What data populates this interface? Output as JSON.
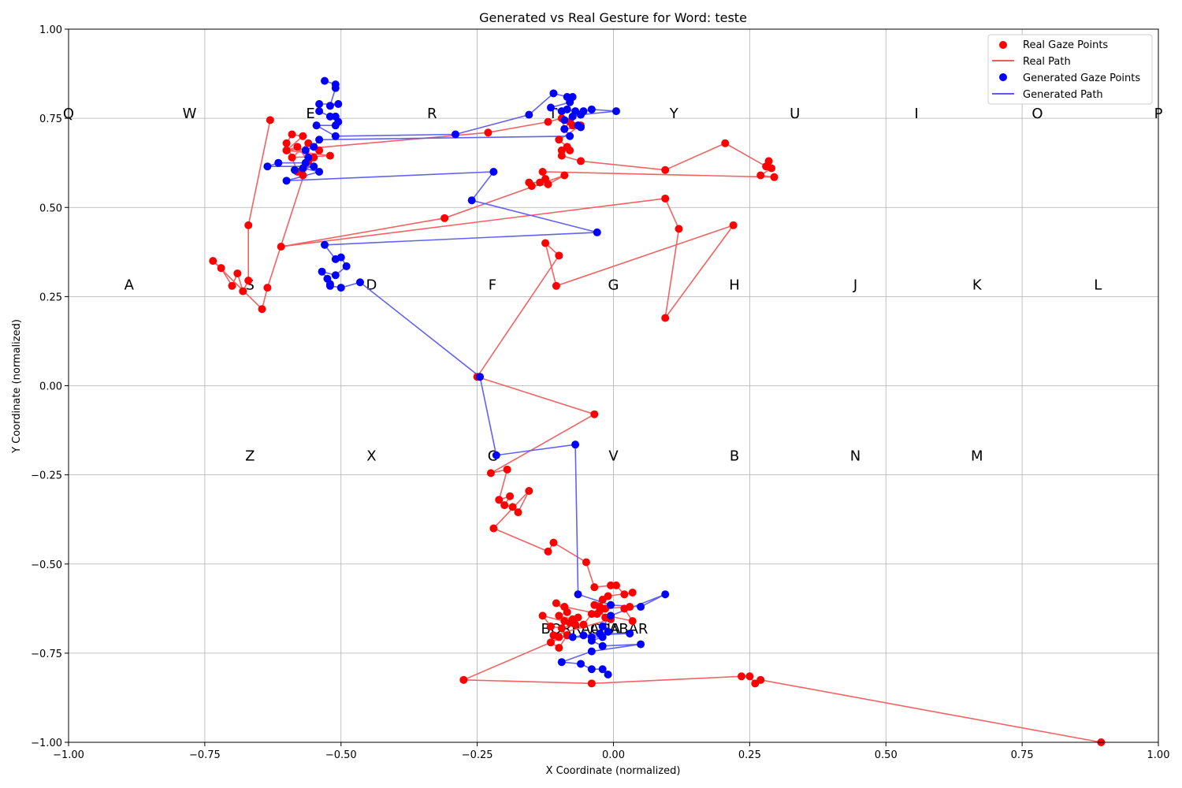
{
  "chart_data": {
    "type": "scatter",
    "title": "Generated vs Real Gesture for Word: teste",
    "xlabel": "X Coordinate (normalized)",
    "ylabel": "Y Coordinate (normalized)",
    "xlim": [
      -1.0,
      1.0
    ],
    "ylim": [
      -1.0,
      1.0
    ],
    "x_ticks": [
      "−1.00",
      "−0.75",
      "−0.50",
      "−0.25",
      "0.00",
      "0.25",
      "0.50",
      "0.75",
      "1.00"
    ],
    "y_ticks": [
      "−1.00",
      "−0.75",
      "−0.50",
      "−0.25",
      "0.00",
      "0.25",
      "0.50",
      "0.75",
      "1.00"
    ],
    "x_tick_values": [
      -1.0,
      -0.75,
      -0.5,
      -0.25,
      0.0,
      0.25,
      0.5,
      0.75,
      1.0
    ],
    "y_tick_values": [
      -1.0,
      -0.75,
      -0.5,
      -0.25,
      0.0,
      0.25,
      0.5,
      0.75,
      1.0
    ],
    "grid": true,
    "legend_position": "top-right",
    "keys": [
      {
        "label": "Q",
        "x": -1.0,
        "y": 0.75
      },
      {
        "label": "W",
        "x": -0.778,
        "y": 0.75
      },
      {
        "label": "E",
        "x": -0.556,
        "y": 0.75
      },
      {
        "label": "R",
        "x": -0.333,
        "y": 0.75
      },
      {
        "label": "T",
        "x": -0.111,
        "y": 0.75
      },
      {
        "label": "Y",
        "x": 0.111,
        "y": 0.75
      },
      {
        "label": "U",
        "x": 0.333,
        "y": 0.75
      },
      {
        "label": "I",
        "x": 0.556,
        "y": 0.75
      },
      {
        "label": "O",
        "x": 0.778,
        "y": 0.75
      },
      {
        "label": "P",
        "x": 1.0,
        "y": 0.75
      },
      {
        "label": "A",
        "x": -0.889,
        "y": 0.27
      },
      {
        "label": "S",
        "x": -0.667,
        "y": 0.27
      },
      {
        "label": "D",
        "x": -0.444,
        "y": 0.27
      },
      {
        "label": "F",
        "x": -0.222,
        "y": 0.27
      },
      {
        "label": "G",
        "x": 0.0,
        "y": 0.27
      },
      {
        "label": "H",
        "x": 0.222,
        "y": 0.27
      },
      {
        "label": "J",
        "x": 0.444,
        "y": 0.27
      },
      {
        "label": "K",
        "x": 0.667,
        "y": 0.27
      },
      {
        "label": "L",
        "x": 0.889,
        "y": 0.27
      },
      {
        "label": "Z",
        "x": -0.667,
        "y": -0.21
      },
      {
        "label": "X",
        "x": -0.444,
        "y": -0.21
      },
      {
        "label": "C",
        "x": -0.222,
        "y": -0.21
      },
      {
        "label": "V",
        "x": 0.0,
        "y": -0.21
      },
      {
        "label": "B",
        "x": 0.222,
        "y": -0.21
      },
      {
        "label": "N",
        "x": 0.444,
        "y": -0.21
      },
      {
        "label": "M",
        "x": 0.667,
        "y": -0.21
      },
      {
        "label": "BORRACHA",
        "x": -0.06,
        "y": -0.695
      },
      {
        "label": "ACABAR",
        "x": 0.01,
        "y": -0.695
      }
    ],
    "series": [
      {
        "name": "Real Gaze Points",
        "path_name": "Real Path",
        "color": "#ff0000",
        "line_color": "#f05b5b",
        "points": [
          [
            -0.63,
            0.745
          ],
          [
            -0.67,
            0.45
          ],
          [
            -0.67,
            0.295
          ],
          [
            -0.68,
            0.265
          ],
          [
            -0.69,
            0.315
          ],
          [
            -0.7,
            0.28
          ],
          [
            -0.72,
            0.33
          ],
          [
            -0.735,
            0.35
          ],
          [
            -0.645,
            0.215
          ],
          [
            -0.635,
            0.275
          ],
          [
            -0.56,
            0.63
          ],
          [
            -0.58,
            0.67
          ],
          [
            -0.6,
            0.66
          ],
          [
            -0.57,
            0.7
          ],
          [
            -0.59,
            0.705
          ],
          [
            -0.6,
            0.68
          ],
          [
            -0.58,
            0.6
          ],
          [
            -0.57,
            0.59
          ],
          [
            -0.55,
            0.64
          ],
          [
            -0.54,
            0.66
          ],
          [
            -0.56,
            0.68
          ],
          [
            -0.59,
            0.64
          ],
          [
            -0.52,
            0.645
          ],
          [
            -0.6,
            0.66
          ],
          [
            -0.23,
            0.71
          ],
          [
            -0.12,
            0.74
          ],
          [
            -0.095,
            0.75
          ],
          [
            -0.09,
            0.72
          ],
          [
            -0.08,
            0.74
          ],
          [
            -0.075,
            0.73
          ],
          [
            -0.06,
            0.73
          ],
          [
            -0.1,
            0.69
          ],
          [
            -0.085,
            0.67
          ],
          [
            -0.08,
            0.66
          ],
          [
            -0.095,
            0.66
          ],
          [
            -0.095,
            0.645
          ],
          [
            -0.06,
            0.63
          ],
          [
            0.095,
            0.605
          ],
          [
            0.205,
            0.68
          ],
          [
            0.28,
            0.615
          ],
          [
            0.285,
            0.63
          ],
          [
            0.29,
            0.61
          ],
          [
            0.27,
            0.59
          ],
          [
            0.295,
            0.585
          ],
          [
            -0.13,
            0.6
          ],
          [
            -0.125,
            0.58
          ],
          [
            -0.135,
            0.57
          ],
          [
            -0.155,
            0.57
          ],
          [
            -0.15,
            0.56
          ],
          [
            -0.12,
            0.565
          ],
          [
            -0.09,
            0.59
          ],
          [
            -0.31,
            0.47
          ],
          [
            -0.61,
            0.39
          ],
          [
            0.095,
            0.525
          ],
          [
            0.12,
            0.44
          ],
          [
            0.095,
            0.19
          ],
          [
            0.22,
            0.45
          ],
          [
            -0.105,
            0.28
          ],
          [
            -0.125,
            0.4
          ],
          [
            -0.1,
            0.365
          ],
          [
            -0.25,
            0.025
          ],
          [
            -0.035,
            -0.08
          ],
          [
            -0.225,
            -0.245
          ],
          [
            -0.195,
            -0.235
          ],
          [
            -0.21,
            -0.32
          ],
          [
            -0.19,
            -0.31
          ],
          [
            -0.2,
            -0.335
          ],
          [
            -0.185,
            -0.34
          ],
          [
            -0.175,
            -0.355
          ],
          [
            -0.155,
            -0.295
          ],
          [
            -0.22,
            -0.4
          ],
          [
            -0.12,
            -0.465
          ],
          [
            -0.11,
            -0.44
          ],
          [
            -0.05,
            -0.495
          ],
          [
            -0.035,
            -0.565
          ],
          [
            -0.005,
            -0.56
          ],
          [
            0.005,
            -0.56
          ],
          [
            0.02,
            -0.585
          ],
          [
            0.035,
            -0.58
          ],
          [
            -0.01,
            -0.59
          ],
          [
            -0.02,
            -0.6
          ],
          [
            -0.035,
            -0.615
          ],
          [
            -0.025,
            -0.62
          ],
          [
            -0.03,
            -0.64
          ],
          [
            -0.015,
            -0.625
          ],
          [
            0.03,
            -0.62
          ],
          [
            0.02,
            -0.625
          ],
          [
            0.035,
            -0.66
          ],
          [
            -0.09,
            -0.62
          ],
          [
            -0.105,
            -0.61
          ],
          [
            -0.085,
            -0.635
          ],
          [
            -0.1,
            -0.645
          ],
          [
            -0.075,
            -0.655
          ],
          [
            -0.065,
            -0.65
          ],
          [
            -0.09,
            -0.66
          ],
          [
            -0.08,
            -0.665
          ],
          [
            -0.13,
            -0.645
          ],
          [
            -0.115,
            -0.675
          ],
          [
            -0.095,
            -0.68
          ],
          [
            -0.07,
            -0.67
          ],
          [
            -0.055,
            -0.67
          ],
          [
            -0.04,
            -0.64
          ],
          [
            -0.025,
            -0.63
          ],
          [
            -0.015,
            -0.65
          ],
          [
            -0.005,
            -0.655
          ],
          [
            -0.11,
            -0.7
          ],
          [
            -0.1,
            -0.705
          ],
          [
            -0.115,
            -0.72
          ],
          [
            -0.1,
            -0.735
          ],
          [
            -0.085,
            -0.7
          ],
          [
            -0.275,
            -0.825
          ],
          [
            -0.04,
            -0.835
          ],
          [
            0.235,
            -0.815
          ],
          [
            0.25,
            -0.815
          ],
          [
            0.26,
            -0.835
          ],
          [
            0.27,
            -0.825
          ],
          [
            0.895,
            -1.0
          ]
        ]
      },
      {
        "name": "Generated Gaze Points",
        "path_name": "Generated Path",
        "color": "#0000ff",
        "line_color": "#5a5af0",
        "points": [
          [
            -0.53,
            0.855
          ],
          [
            -0.51,
            0.845
          ],
          [
            -0.51,
            0.835
          ],
          [
            -0.52,
            0.785
          ],
          [
            -0.505,
            0.79
          ],
          [
            -0.54,
            0.79
          ],
          [
            -0.54,
            0.77
          ],
          [
            -0.52,
            0.755
          ],
          [
            -0.51,
            0.755
          ],
          [
            -0.505,
            0.74
          ],
          [
            -0.51,
            0.73
          ],
          [
            -0.545,
            0.73
          ],
          [
            -0.51,
            0.7
          ],
          [
            -0.29,
            0.705
          ],
          [
            -0.155,
            0.76
          ],
          [
            -0.11,
            0.82
          ],
          [
            -0.085,
            0.81
          ],
          [
            -0.075,
            0.81
          ],
          [
            -0.08,
            0.795
          ],
          [
            -0.115,
            0.78
          ],
          [
            -0.095,
            0.77
          ],
          [
            -0.085,
            0.775
          ],
          [
            -0.07,
            0.77
          ],
          [
            -0.055,
            0.77
          ],
          [
            -0.04,
            0.775
          ],
          [
            0.005,
            0.77
          ],
          [
            -0.06,
            0.76
          ],
          [
            -0.075,
            0.755
          ],
          [
            -0.09,
            0.745
          ],
          [
            -0.065,
            0.73
          ],
          [
            -0.06,
            0.725
          ],
          [
            -0.09,
            0.72
          ],
          [
            -0.08,
            0.7
          ],
          [
            -0.54,
            0.69
          ],
          [
            -0.55,
            0.67
          ],
          [
            -0.565,
            0.66
          ],
          [
            -0.56,
            0.64
          ],
          [
            -0.565,
            0.625
          ],
          [
            -0.615,
            0.625
          ],
          [
            -0.635,
            0.615
          ],
          [
            -0.55,
            0.615
          ],
          [
            -0.585,
            0.605
          ],
          [
            -0.57,
            0.61
          ],
          [
            -0.54,
            0.6
          ],
          [
            -0.6,
            0.575
          ],
          [
            -0.22,
            0.6
          ],
          [
            -0.26,
            0.52
          ],
          [
            -0.03,
            0.43
          ],
          [
            -0.53,
            0.395
          ],
          [
            -0.51,
            0.355
          ],
          [
            -0.5,
            0.36
          ],
          [
            -0.49,
            0.335
          ],
          [
            -0.51,
            0.31
          ],
          [
            -0.535,
            0.32
          ],
          [
            -0.525,
            0.3
          ],
          [
            -0.52,
            0.285
          ],
          [
            -0.52,
            0.28
          ],
          [
            -0.5,
            0.275
          ],
          [
            -0.465,
            0.29
          ],
          [
            -0.245,
            0.025
          ],
          [
            -0.215,
            -0.195
          ],
          [
            -0.07,
            -0.165
          ],
          [
            -0.065,
            -0.585
          ],
          [
            -0.005,
            -0.615
          ],
          [
            0.05,
            -0.62
          ],
          [
            0.095,
            -0.585
          ],
          [
            -0.005,
            -0.645
          ],
          [
            -0.02,
            -0.675
          ],
          [
            -0.01,
            -0.69
          ],
          [
            -0.025,
            -0.695
          ],
          [
            0.03,
            -0.695
          ],
          [
            -0.055,
            -0.7
          ],
          [
            -0.075,
            -0.705
          ],
          [
            -0.04,
            -0.705
          ],
          [
            -0.02,
            -0.705
          ],
          [
            -0.04,
            -0.715
          ],
          [
            -0.02,
            -0.73
          ],
          [
            0.05,
            -0.725
          ],
          [
            -0.04,
            -0.745
          ],
          [
            -0.095,
            -0.775
          ],
          [
            -0.06,
            -0.78
          ],
          [
            -0.04,
            -0.795
          ],
          [
            -0.02,
            -0.795
          ],
          [
            -0.01,
            -0.81
          ]
        ]
      }
    ]
  }
}
